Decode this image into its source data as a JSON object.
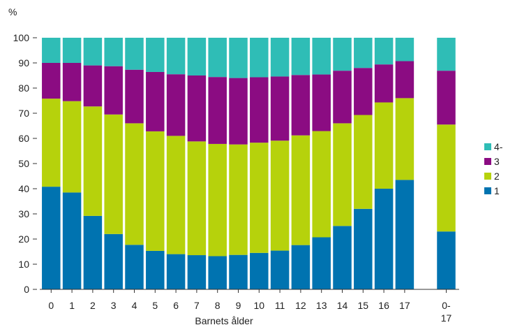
{
  "chart_data": {
    "type": "bar",
    "stacked": true,
    "ylabel": "%",
    "xlabel": "Barnets ålder",
    "ylim": [
      0,
      100
    ],
    "yticks": [
      0,
      10,
      20,
      30,
      40,
      50,
      60,
      70,
      80,
      90,
      100
    ],
    "grid": false,
    "legend_position": "right",
    "categories": [
      "0",
      "1",
      "2",
      "3",
      "4",
      "5",
      "6",
      "7",
      "8",
      "9",
      "10",
      "11",
      "12",
      "13",
      "14",
      "15",
      "16",
      "17",
      "0-17"
    ],
    "series": [
      {
        "name": "1",
        "color": "#0073b0",
        "values": [
          40.8,
          38.5,
          29.2,
          22.0,
          17.7,
          15.3,
          14.0,
          13.6,
          13.2,
          13.7,
          14.5,
          15.4,
          17.6,
          20.7,
          25.2,
          32.0,
          40.0,
          43.5,
          23.0
        ]
      },
      {
        "name": "2",
        "color": "#b6d20c",
        "values": [
          35.0,
          36.3,
          43.5,
          47.5,
          48.3,
          47.5,
          47.0,
          45.2,
          44.6,
          43.9,
          43.8,
          43.7,
          43.6,
          42.2,
          40.8,
          37.3,
          34.3,
          32.5,
          42.5
        ]
      },
      {
        "name": "3",
        "color": "#8b0c82",
        "values": [
          14.2,
          15.2,
          16.3,
          19.2,
          21.3,
          23.6,
          24.5,
          26.2,
          26.6,
          26.4,
          26.0,
          25.5,
          24.0,
          22.5,
          20.9,
          18.7,
          15.1,
          14.7,
          21.4
        ]
      },
      {
        "name": "4-",
        "color": "#2fbdb6",
        "values": [
          10.0,
          10.0,
          11.0,
          11.3,
          12.7,
          13.6,
          14.5,
          15.0,
          15.6,
          16.0,
          15.7,
          15.4,
          14.8,
          14.6,
          13.1,
          12.0,
          10.6,
          9.3,
          13.1
        ]
      }
    ]
  }
}
